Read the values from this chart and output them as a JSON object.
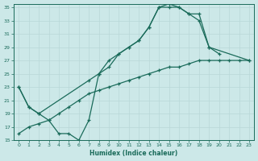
{
  "xlabel": "Humidex (Indice chaleur)",
  "bg_color": "#cce8e8",
  "grid_color": "#b8d8d8",
  "line_color": "#1a6b5a",
  "xlim": [
    -0.5,
    23.5
  ],
  "ylim": [
    15,
    35.5
  ],
  "xticks": [
    0,
    1,
    2,
    3,
    4,
    5,
    6,
    7,
    8,
    9,
    10,
    11,
    12,
    13,
    14,
    15,
    16,
    17,
    18,
    19,
    20,
    21,
    22,
    23
  ],
  "yticks": [
    15,
    17,
    19,
    21,
    23,
    25,
    27,
    29,
    31,
    33,
    35
  ],
  "curve1_x": [
    0,
    1,
    2,
    3,
    4,
    5,
    6,
    7,
    8,
    9,
    10,
    11,
    12,
    13,
    14,
    15,
    16,
    17,
    18,
    19,
    23
  ],
  "curve1_y": [
    23,
    20,
    19,
    18,
    16,
    16,
    15,
    18,
    25,
    26,
    28,
    29,
    30,
    32,
    35,
    35.5,
    35,
    34,
    34,
    29,
    27
  ],
  "curve2_x": [
    0,
    1,
    2,
    7,
    8,
    9,
    10,
    11,
    12,
    13,
    14,
    15,
    16,
    17,
    18,
    19,
    20
  ],
  "curve2_y": [
    23,
    20,
    19,
    24,
    25,
    27,
    28,
    29,
    30,
    32,
    35,
    35,
    35,
    34,
    33,
    29,
    28
  ],
  "curve3_x": [
    0,
    1,
    2,
    3,
    4,
    5,
    6,
    7,
    8,
    9,
    10,
    11,
    12,
    13,
    14,
    15,
    16,
    17,
    18,
    19,
    20,
    21,
    22,
    23
  ],
  "curve3_y": [
    16,
    17,
    17.5,
    18,
    19,
    20,
    21,
    22,
    22.5,
    23,
    23.5,
    24,
    24.5,
    25,
    25.5,
    26,
    26,
    26.5,
    27,
    27,
    27,
    27,
    27,
    27
  ]
}
